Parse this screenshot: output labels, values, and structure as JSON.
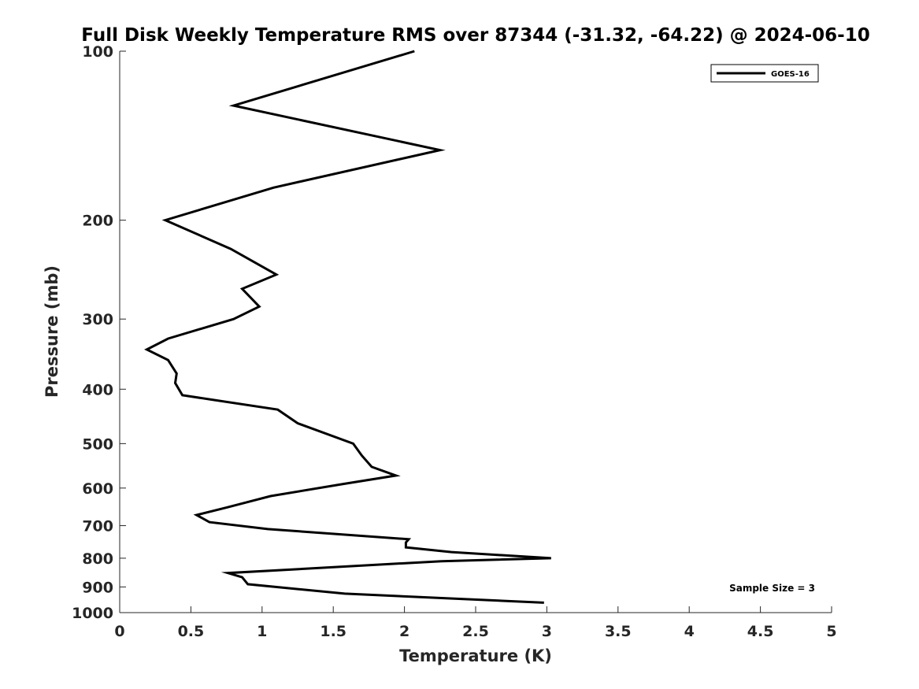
{
  "chart_data": {
    "type": "line",
    "title": "Full Disk Weekly Temperature RMS over 87344 (-31.32, -64.22) @ 2024-06-10",
    "xlabel": "Temperature (K)",
    "ylabel": "Pressure (mb)",
    "xlim": [
      0,
      5
    ],
    "ylim": [
      100,
      1000
    ],
    "yscale": "log",
    "y_reversed": true,
    "grid": false,
    "x_ticks": [
      0,
      0.5,
      1,
      1.5,
      2,
      2.5,
      3,
      3.5,
      4,
      4.5,
      5
    ],
    "x_tick_labels": [
      "0",
      "0.5",
      "1",
      "1.5",
      "2",
      "2.5",
      "3",
      "3.5",
      "4",
      "4.5",
      "5"
    ],
    "y_ticks": [
      100,
      200,
      300,
      400,
      500,
      600,
      700,
      800,
      900,
      1000
    ],
    "y_tick_labels": [
      "100",
      "200",
      "300",
      "400",
      "500",
      "600",
      "700",
      "800",
      "900",
      "1000"
    ],
    "legend": {
      "position": "top-right",
      "entries": [
        "GOES-16"
      ]
    },
    "annotation": "Sample Size = 3",
    "series": [
      {
        "name": "GOES-16",
        "color": "#000000",
        "x": [
          2.07,
          0.8,
          2.25,
          1.08,
          0.32,
          0.78,
          1.1,
          0.86,
          0.98,
          0.8,
          0.34,
          0.19,
          0.34,
          0.4,
          0.39,
          0.44,
          1.11,
          1.25,
          1.64,
          1.7,
          1.77,
          1.94,
          1.57,
          1.06,
          0.75,
          0.54,
          0.63,
          1.04,
          2.03,
          2.01,
          2.01,
          2.33,
          3.03,
          2.26,
          0.76,
          0.86,
          0.9,
          1.58,
          2.98
        ],
        "y": [
          100,
          125,
          150,
          175,
          200,
          225,
          250,
          265,
          285,
          300,
          325,
          340,
          355,
          375,
          390,
          410,
          435,
          460,
          500,
          525,
          550,
          570,
          590,
          620,
          650,
          670,
          690,
          710,
          740,
          750,
          765,
          780,
          800,
          810,
          850,
          865,
          890,
          925,
          960
        ]
      }
    ]
  }
}
